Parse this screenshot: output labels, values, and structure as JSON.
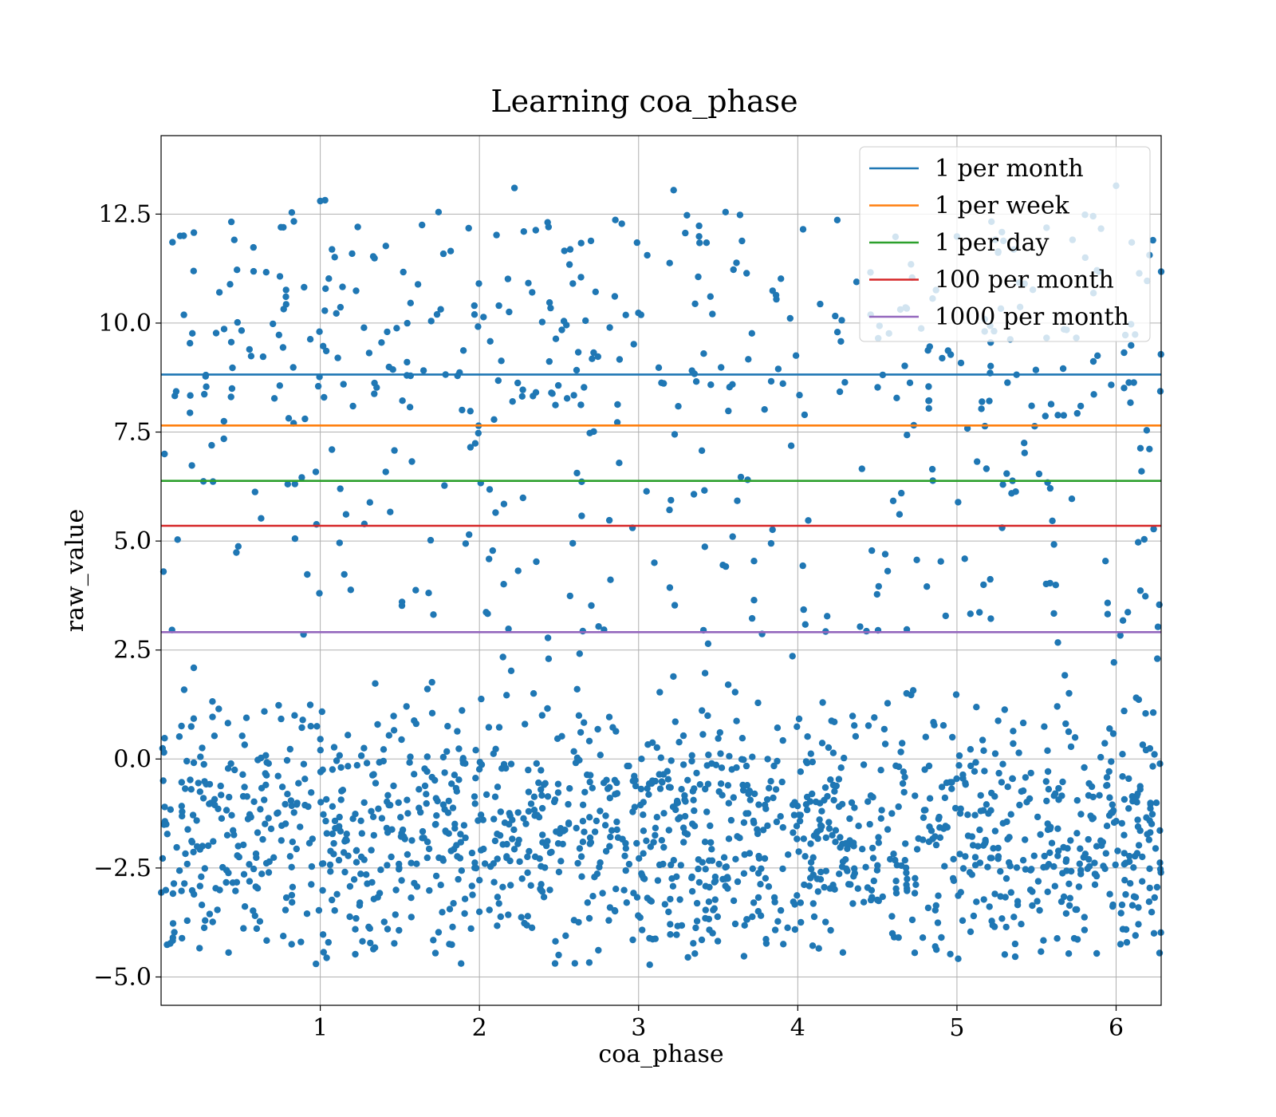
{
  "chart_data": {
    "type": "scatter",
    "title": "Learning coa_phase",
    "xlabel": "coa_phase",
    "ylabel": "raw_value",
    "xlim": [
      0.0,
      6.283
    ],
    "ylim": [
      -5.65,
      14.3
    ],
    "x_ticks": [
      1,
      2,
      3,
      4,
      5,
      6
    ],
    "x_tick_labels": [
      "1",
      "2",
      "3",
      "4",
      "5",
      "6"
    ],
    "y_ticks": [
      -5.0,
      -2.5,
      0.0,
      2.5,
      5.0,
      7.5,
      10.0,
      12.5
    ],
    "y_tick_labels": [
      "−5.0",
      "−2.5",
      "0.0",
      "2.5",
      "5.0",
      "7.5",
      "10.0",
      "12.5"
    ],
    "grid": true,
    "scatter_color": "#1f77b4",
    "scatter_count": 2000,
    "scatter_distribution": {
      "low_cluster_fraction": 0.75,
      "low_cluster_range": [
        -4.7,
        2.8
      ],
      "low_cluster_center": -1.7,
      "high_range": [
        2.8,
        13.2
      ]
    },
    "highlight_points": [
      {
        "x": 2.22,
        "y": 13.1
      },
      {
        "x": 3.22,
        "y": 13.05
      },
      {
        "x": 6.0,
        "y": 13.15
      },
      {
        "x": 1.0,
        "y": 12.8
      },
      {
        "x": 1.03,
        "y": 12.82
      },
      {
        "x": 3.07,
        "y": -4.72
      },
      {
        "x": 3.31,
        "y": -4.55
      },
      {
        "x": 0.82,
        "y": -4.25
      }
    ],
    "thresholds": [
      {
        "name": "1 per month",
        "y": 8.82,
        "color": "#1f77b4"
      },
      {
        "name": "1 per week",
        "y": 7.65,
        "color": "#ff7f0e"
      },
      {
        "name": "1 per day",
        "y": 6.38,
        "color": "#2ca02c"
      },
      {
        "name": "100 per month",
        "y": 5.35,
        "color": "#d62728"
      },
      {
        "name": "1000 per month",
        "y": 2.91,
        "color": "#9467bd"
      }
    ],
    "legend_position": "top-right"
  }
}
